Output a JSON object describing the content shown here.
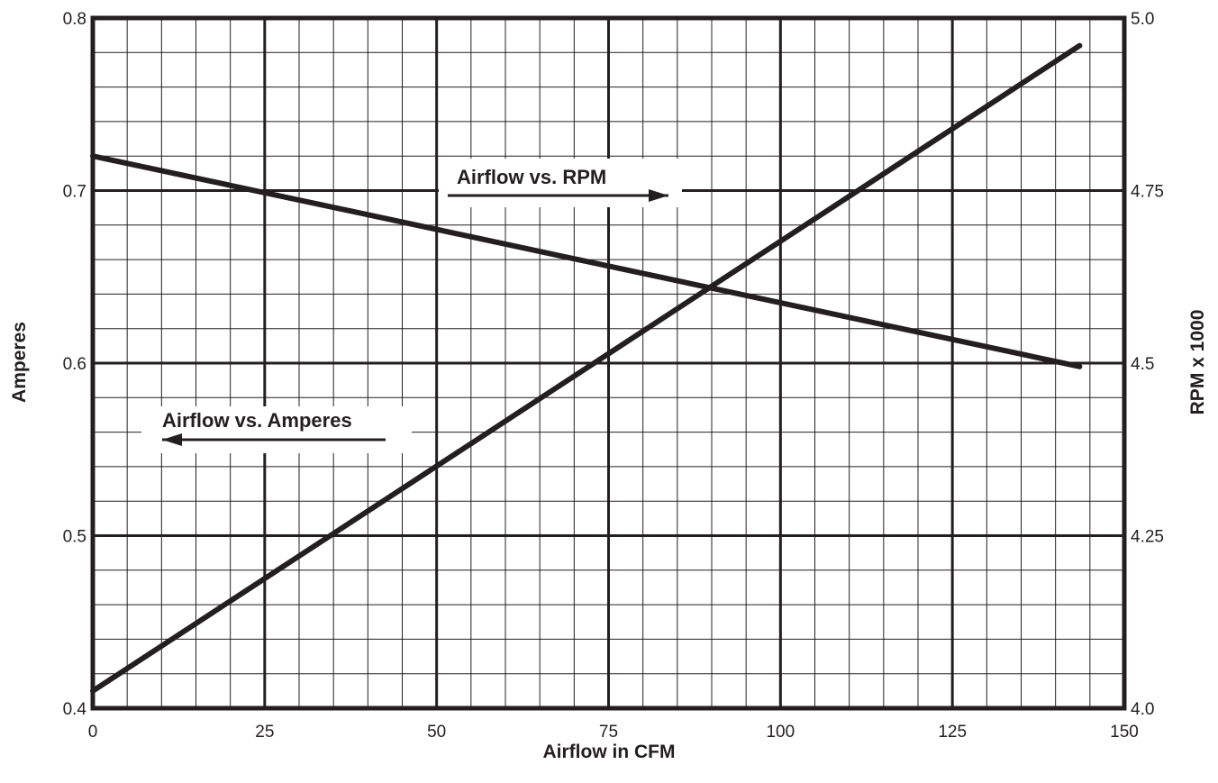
{
  "chart_data": {
    "type": "line",
    "title": "",
    "xlabel": "Airflow in CFM",
    "ylabel": "Amperes",
    "y2label": "RPM x 1000",
    "xlim": [
      0,
      150
    ],
    "ylim": [
      0.4,
      0.8
    ],
    "y2lim": [
      4.0,
      5.0
    ],
    "x_ticks": [
      "0",
      "25",
      "50",
      "75",
      "100",
      "125",
      "150"
    ],
    "y_ticks": [
      "0.4",
      "0.5",
      "0.6",
      "0.7",
      "0.8"
    ],
    "y2_ticks": [
      "4.0",
      "4.25",
      "4.5",
      "4.75",
      "5.0"
    ],
    "grid": true,
    "series": [
      {
        "name": "Airflow vs. Amperes",
        "axis": "left",
        "x": [
          0,
          143.5
        ],
        "y": [
          0.41,
          0.784
        ]
      },
      {
        "name": "Airflow vs. RPM",
        "axis": "right",
        "x": [
          0,
          143.5
        ],
        "y": [
          4.8,
          4.495
        ]
      }
    ],
    "annotations": [
      {
        "text": "Airflow vs. RPM",
        "direction": "right"
      },
      {
        "text": "Airflow vs. Amperes",
        "direction": "left"
      }
    ],
    "colors": {
      "ink": "#231f20",
      "background": "#ffffff"
    }
  }
}
